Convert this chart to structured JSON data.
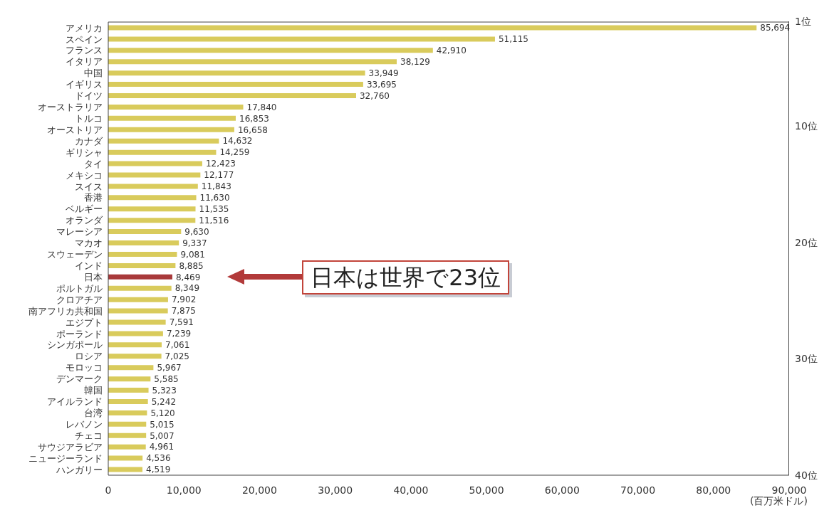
{
  "chart_data": {
    "type": "bar",
    "orientation": "horizontal",
    "categories": [
      "アメリカ",
      "スペイン",
      "フランス",
      "イタリア",
      "中国",
      "イギリス",
      "ドイツ",
      "オーストラリア",
      "トルコ",
      "オーストリア",
      "カナダ",
      "ギリシャ",
      "タイ",
      "メキシコ",
      "スイス",
      "香港",
      "ベルギー",
      "オランダ",
      "マレーシア",
      "マカオ",
      "スウェーデン",
      "インド",
      "日本",
      "ポルトガル",
      "クロアチア",
      "南アフリカ共和国",
      "エジプト",
      "ポーランド",
      "シンガポール",
      "ロシア",
      "モロッコ",
      "デンマーク",
      "韓国",
      "アイルランド",
      "台湾",
      "レバノン",
      "チェコ",
      "サウジアラビア",
      "ニュージーランド",
      "ハンガリー"
    ],
    "values": [
      85694,
      51115,
      42910,
      38129,
      33949,
      33695,
      32760,
      17840,
      16853,
      16658,
      14632,
      14259,
      12423,
      12177,
      11843,
      11630,
      11535,
      11516,
      9630,
      9337,
      9081,
      8885,
      8469,
      8349,
      7902,
      7875,
      7591,
      7239,
      7061,
      7025,
      5967,
      5585,
      5323,
      5242,
      5120,
      5015,
      5007,
      4961,
      4536,
      4519
    ],
    "colors": [
      "#d9cb5c",
      "#d9cb5c",
      "#d9cb5c",
      "#d9cb5c",
      "#d9cb5c",
      "#d9cb5c",
      "#d9cb5c",
      "#d9cb5c",
      "#d9cb5c",
      "#d9cb5c",
      "#d9cb5c",
      "#d9cb5c",
      "#d9cb5c",
      "#d9cb5c",
      "#d9cb5c",
      "#d9cb5c",
      "#d9cb5c",
      "#d9cb5c",
      "#d9cb5c",
      "#d9cb5c",
      "#d9cb5c",
      "#d9cb5c",
      "#a8393a",
      "#d9cb5c",
      "#d9cb5c",
      "#d9cb5c",
      "#d9cb5c",
      "#d9cb5c",
      "#d9cb5c",
      "#d9cb5c",
      "#d9cb5c",
      "#d9cb5c",
      "#d9cb5c",
      "#d9cb5c",
      "#d9cb5c",
      "#d9cb5c",
      "#d9cb5c",
      "#d9cb5c",
      "#d9cb5c",
      "#d9cb5c"
    ],
    "xlim": [
      0,
      90000
    ],
    "xticks": [
      {
        "value": 0,
        "label": "0"
      },
      {
        "value": 10000,
        "label": "10,000"
      },
      {
        "value": 20000,
        "label": "20,000"
      },
      {
        "value": 30000,
        "label": "30,000"
      },
      {
        "value": 40000,
        "label": "40,000"
      },
      {
        "value": 50000,
        "label": "50,000"
      },
      {
        "value": 60000,
        "label": "60,000"
      },
      {
        "value": 70000,
        "label": "70,000"
      },
      {
        "value": 80000,
        "label": "80,000"
      },
      {
        "value": 90000,
        "label": "90,000"
      }
    ],
    "xlabel": "(百万米ドル)",
    "y2lim": [
      40,
      1
    ],
    "y2ticks": [
      {
        "value": 1,
        "label": "1位"
      },
      {
        "value": 10,
        "label": "10位"
      },
      {
        "value": 20,
        "label": "20位"
      },
      {
        "value": 30,
        "label": "30位"
      },
      {
        "value": 40,
        "label": "40位"
      }
    ],
    "value_labels": [
      "85,694",
      "51,115",
      "42,910",
      "38,129",
      "33,949",
      "33,695",
      "32,760",
      "17,840",
      "16,853",
      "16,658",
      "14,632",
      "14,259",
      "12,423",
      "12,177",
      "11,843",
      "11,630",
      "11,535",
      "11,516",
      "9,630",
      "9,337",
      "9,081",
      "8,885",
      "8,469",
      "8,349",
      "7,902",
      "7,875",
      "7,591",
      "7,239",
      "7,061",
      "7,025",
      "5,967",
      "5,585",
      "5,323",
      "5,242",
      "5,120",
      "5,015",
      "5,007",
      "4,961",
      "4,536",
      "4,519"
    ],
    "grid": false,
    "legend": false,
    "data_labels": true,
    "annotations": [
      "日本は世界で23位"
    ]
  }
}
